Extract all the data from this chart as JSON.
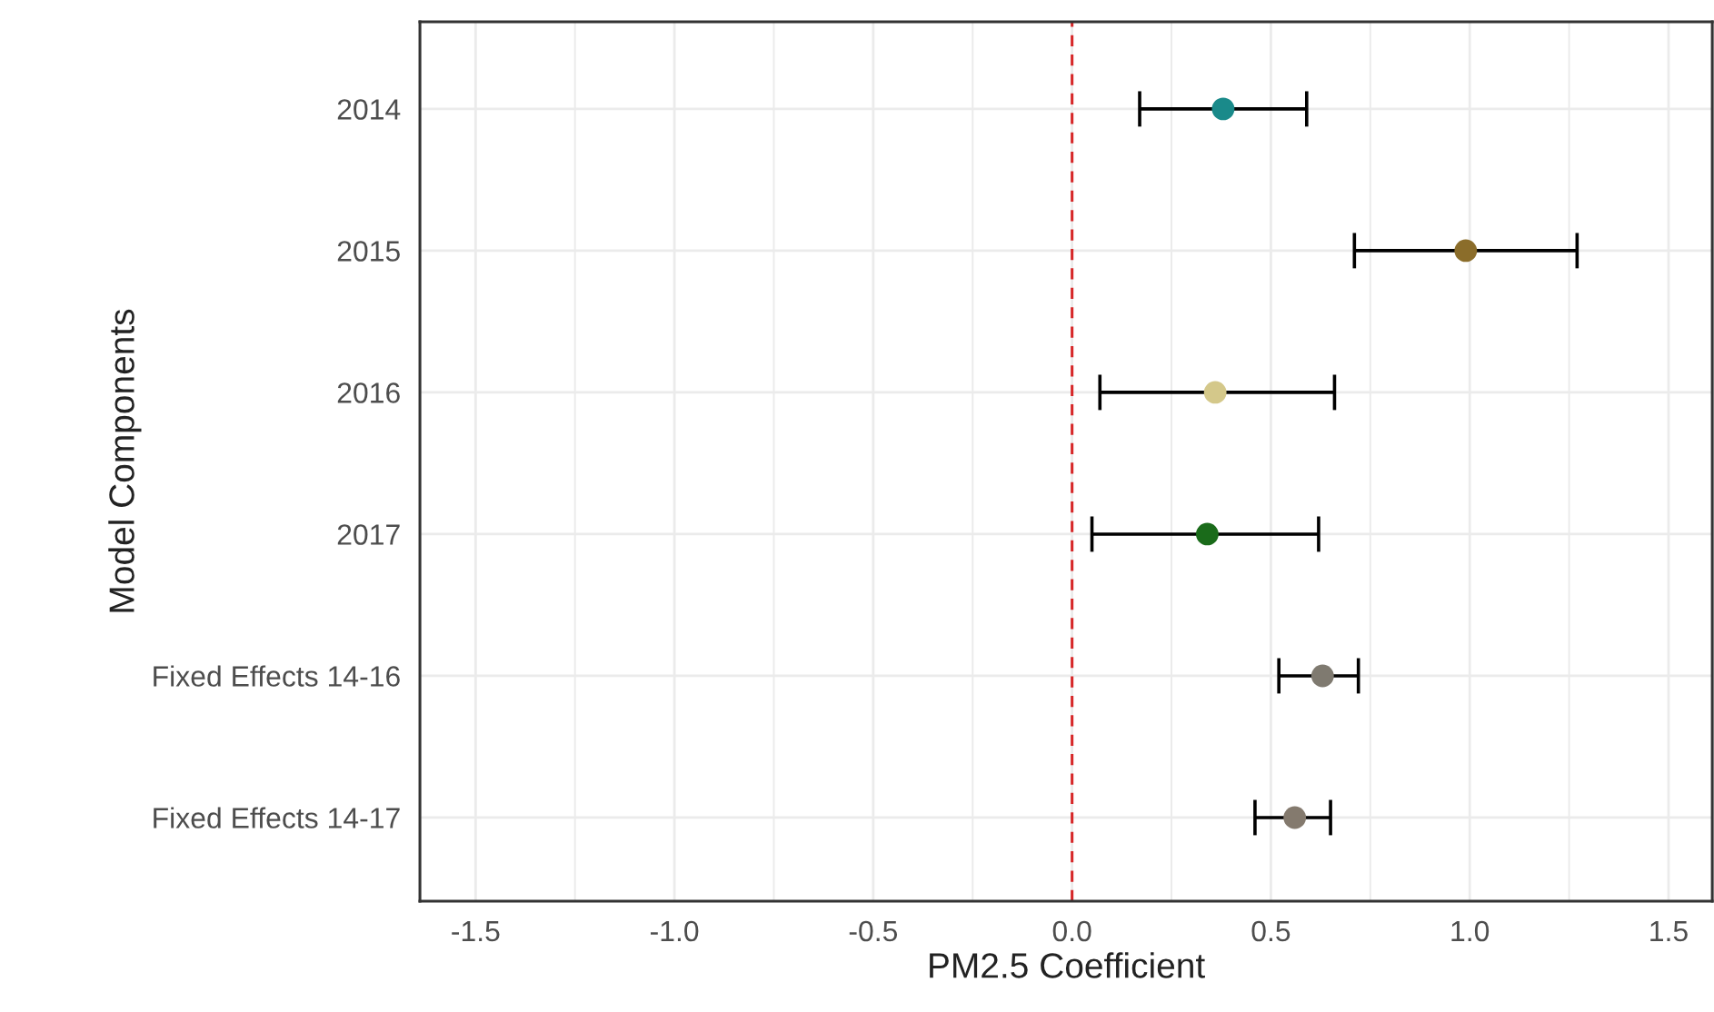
{
  "chart_data": {
    "type": "scatter",
    "orientation": "horizontal",
    "xlabel": "PM2.5 Coefficient",
    "ylabel": "Model Components",
    "categories": [
      "2014",
      "2015",
      "2016",
      "2017",
      "Fixed Effects 14-16",
      "Fixed Effects 14-17"
    ],
    "values": [
      0.38,
      0.99,
      0.36,
      0.34,
      0.63,
      0.56
    ],
    "errors": [
      [
        0.17,
        0.59
      ],
      [
        0.71,
        1.27
      ],
      [
        0.07,
        0.66
      ],
      [
        0.05,
        0.62
      ],
      [
        0.52,
        0.72
      ],
      [
        0.46,
        0.65
      ]
    ],
    "colors": [
      "#1a8a8a",
      "#8b6d2a",
      "#d4c88a",
      "#1a6b1a",
      "#7f7a70",
      "#847a6e"
    ],
    "xlim": [
      -1.64,
      1.61
    ],
    "xticks": [
      -1.5,
      {
        "value": -1,
        "label": "-1.0"
      },
      -0.5,
      {
        "value": 0,
        "label": "0.0"
      },
      0.5,
      {
        "value": 1,
        "label": "1.0"
      },
      1.5
    ],
    "ref_lines": [
      {
        "axis": "x",
        "value": 0,
        "color": "#d62728",
        "line_style": "dashed"
      }
    ],
    "grid": true,
    "marker": "circle"
  }
}
